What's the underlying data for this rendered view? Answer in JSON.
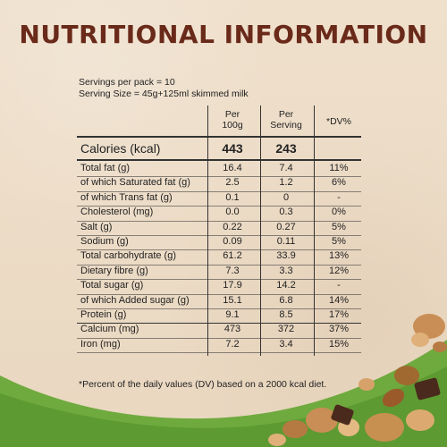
{
  "title": "NUTRITIONAL INFORMATION",
  "servings_per_pack": "Servings per pack = 10",
  "serving_size": "Serving Size = 45g+125ml skimmed milk",
  "columns": {
    "per100": "Per\n100g",
    "per100_line1": "Per",
    "per100_line2": "100g",
    "perServing_line1": "Per",
    "perServing_line2": "Serving",
    "dv": "*DV%"
  },
  "calories": {
    "label": "Calories (kcal)",
    "per100": "443",
    "perServing": "243"
  },
  "rows": [
    {
      "label": "Total fat (g)",
      "per100": "16.4",
      "perServing": "7.4",
      "dv": "11%"
    },
    {
      "label": "of which Saturated fat (g)",
      "per100": "2.5",
      "perServing": "1.2",
      "dv": "6%"
    },
    {
      "label": "of which Trans fat (g)",
      "per100": "0.1",
      "perServing": "0",
      "dv": "-"
    },
    {
      "label": "Cholesterol (mg)",
      "per100": "0.0",
      "perServing": "0.3",
      "dv": "0%"
    },
    {
      "label": "Salt (g)",
      "per100": "0.22",
      "perServing": "0.27",
      "dv": "5%"
    },
    {
      "label": "Sodium (g)",
      "per100": "0.09",
      "perServing": "0.11",
      "dv": "5%"
    },
    {
      "label": "Total carbohydrate (g)",
      "per100": "61.2",
      "perServing": "33.9",
      "dv": "13%"
    },
    {
      "label": "Dietary fibre (g)",
      "per100": "7.3",
      "perServing": "3.3",
      "dv": "12%"
    },
    {
      "label": "Total sugar (g)",
      "per100": "17.9",
      "perServing": "14.2",
      "dv": "-"
    },
    {
      "label": "of which Added sugar (g)",
      "per100": "15.1",
      "perServing": "6.8",
      "dv": "14%"
    },
    {
      "label": "Protein (g)",
      "per100": "9.1",
      "perServing": "8.5",
      "dv": "17%"
    },
    {
      "label": "Calcium (mg)",
      "per100": "473",
      "perServing": "372",
      "dv": "37%"
    },
    {
      "label": "Iron (mg)",
      "per100": "7.2",
      "perServing": "3.4",
      "dv": "15%"
    }
  ],
  "footnote": "*Percent of the daily values (DV) based on a 2000 kcal diet.",
  "colors": {
    "background": "#ecdcc7",
    "title": "#6a2a1a",
    "green": "#6faa3e",
    "text": "#222222"
  }
}
